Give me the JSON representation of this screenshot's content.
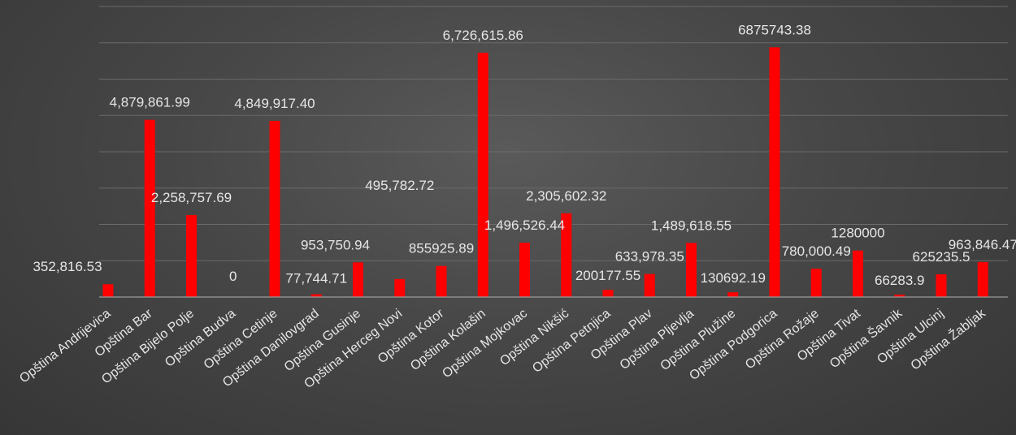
{
  "chart_data": {
    "type": "bar",
    "title": "",
    "xlabel": "",
    "ylabel": "",
    "ylim": [
      0,
      8000000
    ],
    "grid": true,
    "legend": "none",
    "bar_color": "#ff0000",
    "gridline_color": "#6a6a6a",
    "text_color": "#e6e6e6",
    "categories": [
      "Opština Andrijevica",
      "Opština Bar",
      "Opština Bijelo Polje",
      "Opština Budva",
      "Opština Cetinje",
      "Opština Danilovgrad",
      "Opština Gusinje",
      "Opština Herceg Novi",
      "Opština Kotor",
      "Opština Kolašin",
      "Opština Mojkovac",
      "Opština Nikšić",
      "Opština Petnjica",
      "Opština Plav",
      "Opština Pljevlja",
      "Opština Plužine",
      "Opština Podgorica",
      "Opština Rožaje",
      "Opština Tivat",
      "Opština Šavnik",
      "Opština Ulcinj",
      "Opština Žabljak"
    ],
    "values": [
      352816.53,
      4879861.99,
      2258757.69,
      0,
      4849917.4,
      77744.71,
      953750.94,
      495782.72,
      855925.89,
      6726615.86,
      1496526.44,
      2305602.32,
      200177.55,
      633978.35,
      1489618.55,
      130692.19,
      6875743.38,
      780000.49,
      1280000,
      66283.9,
      625235.5,
      963846.47
    ],
    "data_labels": [
      "352,816.53",
      "4,879,861.99",
      "2,258,757.69",
      "0",
      "4,849,917.40",
      "77,744.71",
      "953,750.94",
      "495,782.72",
      "855925.89",
      "6,726,615.86",
      "1,496,526.44",
      "2,305,602.32",
      "200177.55",
      "633,978.35",
      "1,489,618.55",
      "130692.19",
      "6875743.38",
      "780,000.49",
      "1280000",
      "66283.9",
      "625235.5",
      "963,846.47"
    ]
  }
}
